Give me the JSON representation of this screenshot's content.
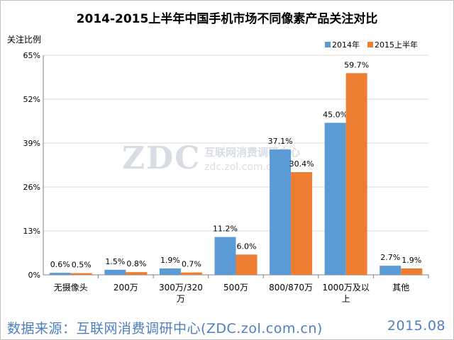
{
  "colors": {
    "series_2014": "#5b9bd5",
    "series_2015": "#ed7d31",
    "grid": "#d9d9d9",
    "axis": "#7f7f7f",
    "footer_text": "#4d7fbf",
    "watermark": "#d8dde3"
  },
  "chart_data": {
    "type": "bar",
    "title": "2014-2015上半年中国手机市场不同像素产品关注对比",
    "ylabel": "关注比例",
    "xlabel": "",
    "categories": [
      [
        "无摄像头"
      ],
      [
        "200万"
      ],
      [
        "300万/320",
        "万"
      ],
      [
        "500万"
      ],
      [
        "800/870万"
      ],
      [
        "1000万及以",
        "上"
      ],
      [
        "其他"
      ]
    ],
    "series": [
      {
        "name": "2014年",
        "values": [
          0.6,
          1.5,
          1.9,
          11.2,
          37.1,
          45.0,
          2.7
        ],
        "labels": [
          "0.6%",
          "1.5%",
          "1.9%",
          "11.2%",
          "37.1%",
          "45.0%",
          "2.7%"
        ]
      },
      {
        "name": "2015上半年",
        "values": [
          0.5,
          0.8,
          0.7,
          6.0,
          30.4,
          59.7,
          1.9
        ],
        "labels": [
          "0.5%",
          "0.8%",
          "0.7%",
          "6.0%",
          "30.4%",
          "59.7%",
          "1.9%"
        ]
      }
    ],
    "yticks": [
      0,
      13,
      26,
      39,
      52,
      65
    ],
    "ytick_labels": [
      "0%",
      "13%",
      "26%",
      "39%",
      "52%",
      "65%"
    ],
    "ylim": [
      0,
      65
    ],
    "grid": true,
    "legend": "top-right"
  },
  "watermark": {
    "logo": "ZDC",
    "line1": "互联网消费调研中心",
    "line2": "zdc.zol.com.cn"
  },
  "footer": {
    "source": "数据来源：互联网消费调研中心(ZDC.zol.com.cn)",
    "date": "2015.08"
  }
}
